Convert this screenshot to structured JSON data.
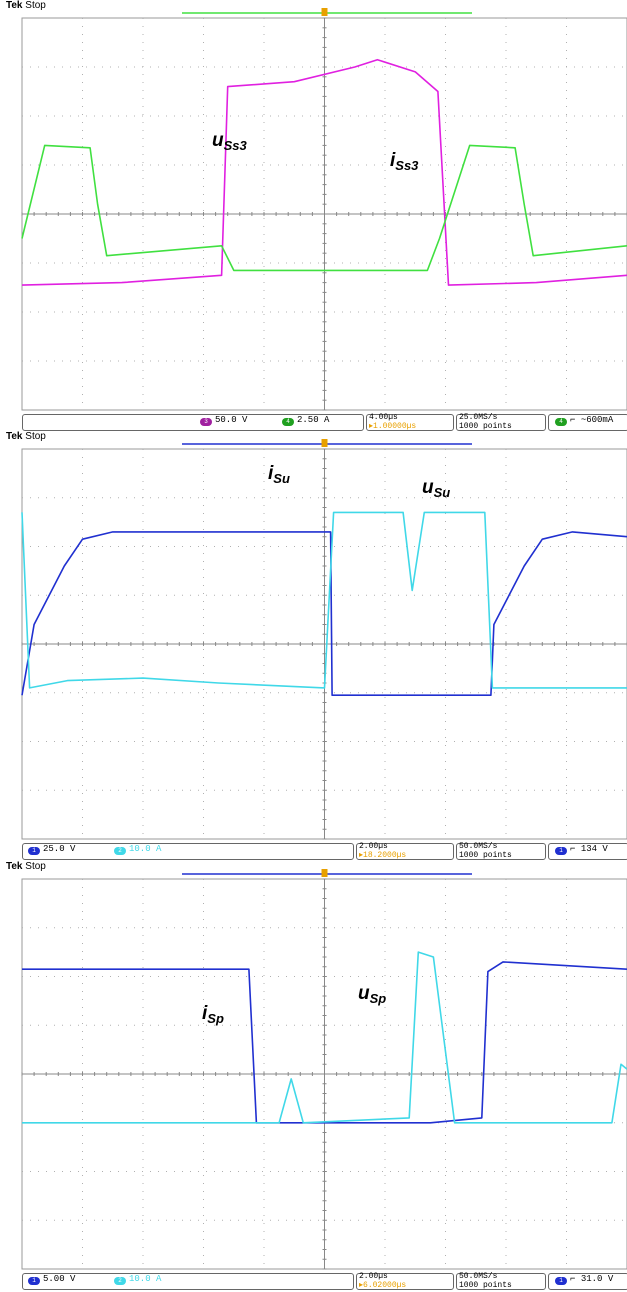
{
  "colors": {
    "magenta": "#e020e0",
    "green": "#40e040",
    "blue": "#2030d0",
    "cyan": "#40d8e8",
    "orange": "#e8a000",
    "grid": "#b0b0b0"
  },
  "tek_label": "Tek",
  "stop_label": "Stop",
  "panels": [
    {
      "annotations": [
        {
          "main": "u",
          "sub": "Ss3",
          "color": "#e020e0"
        },
        {
          "main": "i",
          "sub": "Ss3",
          "color": "#40e040"
        }
      ],
      "status": {
        "ch_a": {
          "num": "3",
          "scale": "50.0 V",
          "color": "#a020a0"
        },
        "ch_b": {
          "num": "4",
          "scale": "2.50 A",
          "color": "#20a020"
        },
        "timebase": "4.00µs",
        "delay": "▸1.00000µs",
        "rate": "25.0MS/s",
        "points": "1000 points",
        "trigger_ch": "4",
        "trigger_level": "~600mA"
      },
      "chart_data": {
        "type": "line",
        "x_unit": "µs",
        "xlim": [
          0,
          40
        ],
        "series": [
          {
            "name": "uSs3",
            "values_div": [
              [
                0,
                -1.45
              ],
              [
                6.6,
                -1.4
              ],
              [
                13.2,
                -1.25
              ],
              [
                13.6,
                2.6
              ],
              [
                18,
                2.7
              ],
              [
                22,
                3.0
              ],
              [
                23.5,
                3.15
              ],
              [
                26,
                2.9
              ],
              [
                27.5,
                2.5
              ],
              [
                28.2,
                -1.45
              ],
              [
                34,
                -1.4
              ],
              [
                40,
                -1.25
              ]
            ]
          },
          {
            "name": "iSs3",
            "values_div": [
              [
                0,
                -0.5
              ],
              [
                1.5,
                1.4
              ],
              [
                4.5,
                1.35
              ],
              [
                5,
                0.2
              ],
              [
                5.6,
                -0.85
              ],
              [
                13.2,
                -0.65
              ],
              [
                14,
                -1.15
              ],
              [
                26.8,
                -1.15
              ],
              [
                27.6,
                -0.5
              ],
              [
                29.6,
                1.4
              ],
              [
                32.6,
                1.35
              ],
              [
                33.2,
                0.2
              ],
              [
                33.8,
                -0.85
              ],
              [
                40,
                -0.65
              ]
            ]
          }
        ]
      }
    },
    {
      "annotations": [
        {
          "main": "i",
          "sub": "Su",
          "color": "#40d8e8"
        },
        {
          "main": "u",
          "sub": "Su",
          "color": "#2030d0"
        }
      ],
      "status": {
        "ch_a": {
          "num": "1",
          "scale": "25.0 V",
          "color": "#2030d0"
        },
        "ch_b": {
          "num": "2",
          "scale": "10.0 A",
          "color": "#40d8e8"
        },
        "timebase": "2.00µs",
        "delay": "▸18.2000µs",
        "rate": "50.0MS/s",
        "points": "1000 points",
        "trigger_ch": "1",
        "trigger_level": "134 V"
      },
      "chart_data": {
        "type": "line",
        "x_unit": "µs",
        "xlim": [
          0,
          20
        ],
        "series": [
          {
            "name": "uSu",
            "values_div": [
              [
                0,
                -1.05
              ],
              [
                0.4,
                0.4
              ],
              [
                1.4,
                1.6
              ],
              [
                2,
                2.15
              ],
              [
                3,
                2.3
              ],
              [
                6.5,
                2.3
              ],
              [
                10.2,
                2.3
              ],
              [
                10.25,
                -1.05
              ],
              [
                15.5,
                -1.05
              ],
              [
                15.6,
                0.4
              ],
              [
                16.6,
                1.6
              ],
              [
                17.2,
                2.15
              ],
              [
                18.2,
                2.3
              ],
              [
                20,
                2.2
              ]
            ]
          },
          {
            "name": "iSu",
            "values_div": [
              [
                0,
                2.7
              ],
              [
                0.25,
                -0.9
              ],
              [
                1.5,
                -0.75
              ],
              [
                4,
                -0.7
              ],
              [
                6.5,
                -0.8
              ],
              [
                10,
                -0.9
              ],
              [
                10.3,
                2.7
              ],
              [
                12.6,
                2.7
              ],
              [
                12.9,
                1.1
              ],
              [
                13.3,
                2.7
              ],
              [
                15.3,
                2.7
              ],
              [
                15.55,
                -0.9
              ],
              [
                20,
                -0.9
              ]
            ]
          }
        ]
      }
    },
    {
      "annotations": [
        {
          "main": "i",
          "sub": "Sp",
          "color": "#40d8e8"
        },
        {
          "main": "u",
          "sub": "Sp",
          "color": "#2030d0"
        }
      ],
      "status": {
        "ch_a": {
          "num": "1",
          "scale": "5.00 V",
          "color": "#2030d0"
        },
        "ch_b": {
          "num": "2",
          "scale": "10.0 A",
          "color": "#40d8e8"
        },
        "timebase": "2.00µs",
        "delay": "▸6.02000µs",
        "rate": "50.0MS/s",
        "points": "1000 points",
        "trigger_ch": "1",
        "trigger_level": "31.0 V"
      },
      "chart_data": {
        "type": "line",
        "x_unit": "µs",
        "xlim": [
          0,
          20
        ],
        "series": [
          {
            "name": "uSp",
            "values_div": [
              [
                0,
                2.15
              ],
              [
                7.5,
                2.15
              ],
              [
                7.75,
                -1.0
              ],
              [
                13.5,
                -1.0
              ],
              [
                15.2,
                -0.9
              ],
              [
                15.4,
                2.1
              ],
              [
                15.9,
                2.3
              ],
              [
                20,
                2.15
              ]
            ]
          },
          {
            "name": "iSp",
            "values_div": [
              [
                0,
                -1.0
              ],
              [
                8.5,
                -1.0
              ],
              [
                8.9,
                -0.1
              ],
              [
                9.3,
                -1.0
              ],
              [
                12.8,
                -0.9
              ],
              [
                13.1,
                2.5
              ],
              [
                13.6,
                2.4
              ],
              [
                14.3,
                -1.0
              ],
              [
                19.5,
                -1.0
              ],
              [
                19.8,
                0.2
              ],
              [
                20,
                0.1
              ]
            ]
          }
        ]
      }
    }
  ]
}
